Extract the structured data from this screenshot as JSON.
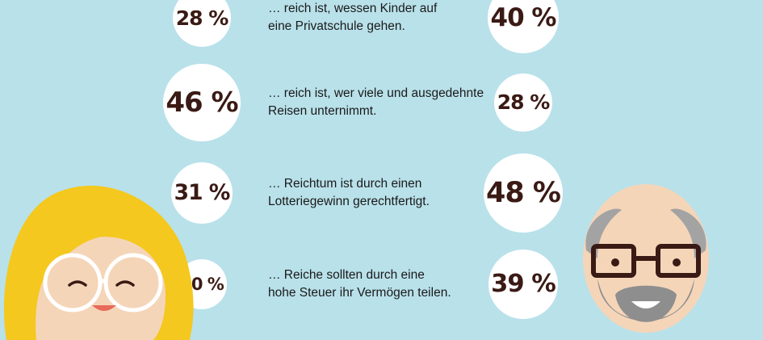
{
  "chart_data": {
    "type": "bubble-comparison",
    "rows": [
      {
        "statement_lines": [
          "… reich ist, wessen Kinder auf",
          "eine Privatschule gehen."
        ],
        "left_value": 28,
        "left_label": "28 %",
        "right_value": 40,
        "right_label": "40 %"
      },
      {
        "statement_lines": [
          "… reich ist, wer viele und ausgedehnte",
          "Reisen unternimmt."
        ],
        "left_value": 46,
        "left_label": "46 %",
        "right_value": 28,
        "right_label": "28 %"
      },
      {
        "statement_lines": [
          "… Reichtum ist durch einen",
          "Lotteriegewinn gerechtfertigt."
        ],
        "left_value": 31,
        "left_label": "31 %",
        "right_value": 48,
        "right_label": "48 %"
      },
      {
        "statement_lines": [
          "… Reiche sollten durch eine",
          "hohe Steuer ihr Vermögen teilen."
        ],
        "left_value": 20,
        "left_label": "20 %",
        "right_value": 39,
        "right_label": "39 %"
      }
    ],
    "left_group_icon": "young-woman-avatar",
    "right_group_icon": "old-man-avatar",
    "colors": {
      "background": "#b9e1ea",
      "bubble": "#ffffff",
      "value_text": "#3a1a14",
      "hair_woman": "#f4c81e",
      "skin": "#f5d5b8",
      "beard": "#8e8e8e"
    }
  }
}
